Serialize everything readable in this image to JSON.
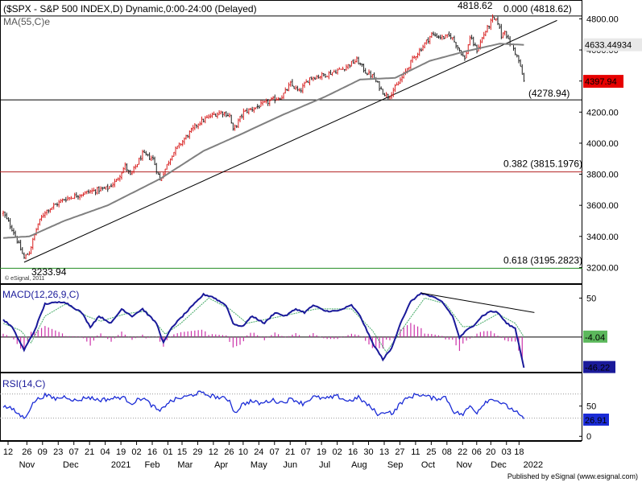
{
  "title": "($SPX - S&P 500 INDEX,D) Dynamic,0:00-24:00 (Delayed)",
  "footer": "Published by eSignal (www.esignal.com)",
  "watermark": "© eSignal, 2011",
  "colors": {
    "up": "#d81e1e",
    "down": "#1e1e1e",
    "ma": "#808080",
    "macd": "#1a1a9a",
    "signal": "#44aa66",
    "hist": "#cc33aa",
    "rsi": "#1a2bd6",
    "fib382": "#b22222",
    "fib618": "#228b22",
    "lastbox": "#e60000"
  },
  "chart_data": [
    {
      "type": "candlestick",
      "name": "price",
      "ylim": [
        3140,
        4880
      ],
      "yticks": [
        3200,
        3400,
        3600,
        3800,
        4000,
        4200,
        4400,
        4600,
        4800
      ],
      "ytick_labels": [
        "3200.00",
        "3400.00",
        "3600.00",
        "3800.00",
        "4000.00",
        "4200.00",
        "4400.00",
        "4600.00",
        "4800.00"
      ],
      "x_range_bars": [
        0,
        300
      ],
      "key_points": [
        {
          "bar": 0,
          "close": 3550
        },
        {
          "bar": 6,
          "close": 3430
        },
        {
          "bar": 12,
          "close": 3260
        },
        {
          "bar": 15,
          "close": 3300
        },
        {
          "bar": 20,
          "close": 3480
        },
        {
          "bar": 24,
          "close": 3560
        },
        {
          "bar": 35,
          "close": 3640
        },
        {
          "bar": 50,
          "close": 3690
        },
        {
          "bar": 60,
          "close": 3710
        },
        {
          "bar": 65,
          "close": 3760
        },
        {
          "bar": 70,
          "close": 3855
        },
        {
          "bar": 73,
          "close": 3790
        },
        {
          "bar": 80,
          "close": 3930
        },
        {
          "bar": 86,
          "close": 3900
        },
        {
          "bar": 90,
          "close": 3760
        },
        {
          "bar": 92,
          "close": 3810
        },
        {
          "bar": 97,
          "close": 3930
        },
        {
          "bar": 105,
          "close": 4040
        },
        {
          "bar": 112,
          "close": 4130
        },
        {
          "bar": 120,
          "close": 4180
        },
        {
          "bar": 125,
          "close": 4200
        },
        {
          "bar": 130,
          "close": 4180
        },
        {
          "bar": 132,
          "close": 4080
        },
        {
          "bar": 138,
          "close": 4200
        },
        {
          "bar": 145,
          "close": 4230
        },
        {
          "bar": 155,
          "close": 4280
        },
        {
          "bar": 160,
          "close": 4300
        },
        {
          "bar": 165,
          "close": 4380
        },
        {
          "bar": 170,
          "close": 4330
        },
        {
          "bar": 176,
          "close": 4420
        },
        {
          "bar": 185,
          "close": 4440
        },
        {
          "bar": 195,
          "close": 4480
        },
        {
          "bar": 203,
          "close": 4535
        },
        {
          "bar": 208,
          "close": 4460
        },
        {
          "bar": 212,
          "close": 4430
        },
        {
          "bar": 218,
          "close": 4330
        },
        {
          "bar": 221,
          "close": 4300
        },
        {
          "bar": 226,
          "close": 4370
        },
        {
          "bar": 230,
          "close": 4440
        },
        {
          "bar": 235,
          "close": 4540
        },
        {
          "bar": 240,
          "close": 4610
        },
        {
          "bar": 246,
          "close": 4700
        },
        {
          "bar": 252,
          "close": 4680
        },
        {
          "bar": 257,
          "close": 4690
        },
        {
          "bar": 262,
          "close": 4600
        },
        {
          "bar": 265,
          "close": 4540
        },
        {
          "bar": 268,
          "close": 4680
        },
        {
          "bar": 272,
          "close": 4600
        },
        {
          "bar": 276,
          "close": 4700
        },
        {
          "bar": 281,
          "close": 4800
        },
        {
          "bar": 284,
          "close": 4780
        },
        {
          "bar": 286,
          "close": 4690
        },
        {
          "bar": 288,
          "close": 4730
        },
        {
          "bar": 290,
          "close": 4660
        },
        {
          "bar": 293,
          "close": 4610
        },
        {
          "bar": 296,
          "close": 4530
        },
        {
          "bar": 299,
          "close": 4398
        }
      ],
      "ma": {
        "label": "MA(55,C)",
        "suffix": "e",
        "last_value_label": "4633.44934",
        "key_points": [
          {
            "bar": 0,
            "value": 3390
          },
          {
            "bar": 15,
            "value": 3400
          },
          {
            "bar": 35,
            "value": 3500
          },
          {
            "bar": 60,
            "value": 3600
          },
          {
            "bar": 90,
            "value": 3770
          },
          {
            "bar": 115,
            "value": 3950
          },
          {
            "bar": 135,
            "value": 4050
          },
          {
            "bar": 160,
            "value": 4180
          },
          {
            "bar": 185,
            "value": 4300
          },
          {
            "bar": 205,
            "value": 4410
          },
          {
            "bar": 225,
            "value": 4420
          },
          {
            "bar": 245,
            "value": 4530
          },
          {
            "bar": 265,
            "value": 4590
          },
          {
            "bar": 285,
            "value": 4640
          },
          {
            "bar": 299,
            "value": 4633
          }
        ]
      },
      "trendline": {
        "from": {
          "bar": 12,
          "value": 3233.94
        },
        "to": {
          "bar": 318,
          "value": 4790
        }
      },
      "hlines": [
        {
          "value": 4818.62,
          "label": "0.000 (4818.62)",
          "color": "#000000"
        },
        {
          "value": 4278.94,
          "label": "(4278.94)",
          "color": "#000000"
        },
        {
          "value": 3815.1976,
          "label": "0.382 (3815.1976)",
          "color": "#b22222"
        },
        {
          "value": 3195.2823,
          "label": "0.618 (3195.2823)",
          "color": "#228b22"
        }
      ],
      "annotations": [
        {
          "text": "4818.62",
          "bar": 281,
          "value": 4818.62
        },
        {
          "text": "3233.94",
          "bar": 12,
          "value": 3233.94
        }
      ],
      "last_price_label": "4397.94",
      "last_price_value": 4397.94
    },
    {
      "type": "line",
      "name": "macd",
      "label": "MACD(12,26,9,C)",
      "ylim": [
        -50,
        65
      ],
      "yticks": [
        50
      ],
      "ytick_labels": [
        "50"
      ],
      "zero_line": -4.04,
      "value_labels": [
        {
          "text": "-4.04",
          "value": -4.04
        },
        {
          "text": "-46.22",
          "value": -46.22
        }
      ],
      "macd_key_points": [
        {
          "bar": 0,
          "value": 20
        },
        {
          "bar": 5,
          "value": 10
        },
        {
          "bar": 12,
          "value": -22
        },
        {
          "bar": 18,
          "value": 5
        },
        {
          "bar": 24,
          "value": 42
        },
        {
          "bar": 35,
          "value": 45
        },
        {
          "bar": 45,
          "value": 30
        },
        {
          "bar": 50,
          "value": 10
        },
        {
          "bar": 55,
          "value": 25
        },
        {
          "bar": 62,
          "value": 15
        },
        {
          "bar": 68,
          "value": 35
        },
        {
          "bar": 74,
          "value": 25
        },
        {
          "bar": 80,
          "value": 35
        },
        {
          "bar": 88,
          "value": 15
        },
        {
          "bar": 92,
          "value": -12
        },
        {
          "bar": 97,
          "value": 10
        },
        {
          "bar": 105,
          "value": 30
        },
        {
          "bar": 115,
          "value": 55
        },
        {
          "bar": 120,
          "value": 52
        },
        {
          "bar": 128,
          "value": 40
        },
        {
          "bar": 132,
          "value": 15
        },
        {
          "bar": 137,
          "value": 10
        },
        {
          "bar": 143,
          "value": 25
        },
        {
          "bar": 150,
          "value": 15
        },
        {
          "bar": 156,
          "value": 30
        },
        {
          "bar": 162,
          "value": 25
        },
        {
          "bar": 168,
          "value": 35
        },
        {
          "bar": 173,
          "value": 30
        },
        {
          "bar": 178,
          "value": 40
        },
        {
          "bar": 185,
          "value": 32
        },
        {
          "bar": 192,
          "value": 32
        },
        {
          "bar": 200,
          "value": 40
        },
        {
          "bar": 205,
          "value": 25
        },
        {
          "bar": 212,
          "value": -12
        },
        {
          "bar": 218,
          "value": -35
        },
        {
          "bar": 223,
          "value": -20
        },
        {
          "bar": 228,
          "value": 15
        },
        {
          "bar": 234,
          "value": 45
        },
        {
          "bar": 240,
          "value": 57
        },
        {
          "bar": 246,
          "value": 52
        },
        {
          "bar": 252,
          "value": 45
        },
        {
          "bar": 258,
          "value": 25
        },
        {
          "bar": 262,
          "value": -5
        },
        {
          "bar": 266,
          "value": 5
        },
        {
          "bar": 270,
          "value": 12
        },
        {
          "bar": 275,
          "value": 25
        },
        {
          "bar": 280,
          "value": 32
        },
        {
          "bar": 284,
          "value": 30
        },
        {
          "bar": 289,
          "value": 15
        },
        {
          "bar": 294,
          "value": 8
        },
        {
          "bar": 299,
          "value": -46
        }
      ],
      "signal_key_points": [
        {
          "bar": 0,
          "value": 15
        },
        {
          "bar": 10,
          "value": 5
        },
        {
          "bar": 16,
          "value": -12
        },
        {
          "bar": 24,
          "value": 25
        },
        {
          "bar": 36,
          "value": 42
        },
        {
          "bar": 48,
          "value": 25
        },
        {
          "bar": 56,
          "value": 18
        },
        {
          "bar": 70,
          "value": 28
        },
        {
          "bar": 82,
          "value": 32
        },
        {
          "bar": 93,
          "value": 0
        },
        {
          "bar": 102,
          "value": 15
        },
        {
          "bar": 118,
          "value": 50
        },
        {
          "bar": 130,
          "value": 35
        },
        {
          "bar": 140,
          "value": 15
        },
        {
          "bar": 160,
          "value": 25
        },
        {
          "bar": 180,
          "value": 35
        },
        {
          "bar": 200,
          "value": 35
        },
        {
          "bar": 212,
          "value": 5
        },
        {
          "bar": 220,
          "value": -25
        },
        {
          "bar": 230,
          "value": 10
        },
        {
          "bar": 242,
          "value": 50
        },
        {
          "bar": 254,
          "value": 42
        },
        {
          "bar": 264,
          "value": 10
        },
        {
          "bar": 272,
          "value": 12
        },
        {
          "bar": 284,
          "value": 28
        },
        {
          "bar": 294,
          "value": 15
        },
        {
          "bar": 299,
          "value": -4
        }
      ],
      "divergence_line": {
        "from": {
          "bar": 240,
          "value": 57
        },
        "to": {
          "bar": 305,
          "value": 30
        }
      }
    },
    {
      "type": "line",
      "name": "rsi",
      "label": "RSI(14,C)",
      "ylim": [
        -5,
        100
      ],
      "yticks": [
        0,
        50
      ],
      "ytick_labels": [
        "0",
        "50"
      ],
      "guide_lines": [
        70,
        30
      ],
      "last_value_label": "26.91",
      "key_points": [
        {
          "bar": 0,
          "value": 50
        },
        {
          "bar": 5,
          "value": 45
        },
        {
          "bar": 12,
          "value": 30
        },
        {
          "bar": 18,
          "value": 58
        },
        {
          "bar": 24,
          "value": 68
        },
        {
          "bar": 30,
          "value": 62
        },
        {
          "bar": 36,
          "value": 66
        },
        {
          "bar": 42,
          "value": 58
        },
        {
          "bar": 48,
          "value": 65
        },
        {
          "bar": 55,
          "value": 60
        },
        {
          "bar": 62,
          "value": 62
        },
        {
          "bar": 68,
          "value": 65
        },
        {
          "bar": 74,
          "value": 55
        },
        {
          "bar": 80,
          "value": 64
        },
        {
          "bar": 85,
          "value": 52
        },
        {
          "bar": 90,
          "value": 40
        },
        {
          "bar": 94,
          "value": 55
        },
        {
          "bar": 100,
          "value": 62
        },
        {
          "bar": 106,
          "value": 66
        },
        {
          "bar": 112,
          "value": 72
        },
        {
          "bar": 118,
          "value": 68
        },
        {
          "bar": 124,
          "value": 64
        },
        {
          "bar": 130,
          "value": 60
        },
        {
          "bar": 133,
          "value": 38
        },
        {
          "bar": 137,
          "value": 52
        },
        {
          "bar": 142,
          "value": 58
        },
        {
          "bar": 148,
          "value": 54
        },
        {
          "bar": 154,
          "value": 60
        },
        {
          "bar": 160,
          "value": 56
        },
        {
          "bar": 166,
          "value": 62
        },
        {
          "bar": 172,
          "value": 54
        },
        {
          "bar": 178,
          "value": 65
        },
        {
          "bar": 185,
          "value": 62
        },
        {
          "bar": 192,
          "value": 66
        },
        {
          "bar": 198,
          "value": 58
        },
        {
          "bar": 204,
          "value": 64
        },
        {
          "bar": 210,
          "value": 50
        },
        {
          "bar": 216,
          "value": 35
        },
        {
          "bar": 220,
          "value": 42
        },
        {
          "bar": 224,
          "value": 38
        },
        {
          "bar": 228,
          "value": 55
        },
        {
          "bar": 233,
          "value": 64
        },
        {
          "bar": 238,
          "value": 70
        },
        {
          "bar": 243,
          "value": 66
        },
        {
          "bar": 248,
          "value": 62
        },
        {
          "bar": 254,
          "value": 65
        },
        {
          "bar": 259,
          "value": 40
        },
        {
          "bar": 264,
          "value": 36
        },
        {
          "bar": 268,
          "value": 50
        },
        {
          "bar": 272,
          "value": 40
        },
        {
          "bar": 277,
          "value": 58
        },
        {
          "bar": 282,
          "value": 62
        },
        {
          "bar": 286,
          "value": 55
        },
        {
          "bar": 290,
          "value": 48
        },
        {
          "bar": 294,
          "value": 42
        },
        {
          "bar": 299,
          "value": 27
        }
      ]
    }
  ],
  "x_axis": {
    "date_labels": [
      {
        "bar": 0,
        "text": "12"
      },
      {
        "bar": 12,
        "text": "26"
      },
      {
        "bar": 22,
        "text": "09"
      },
      {
        "bar": 32,
        "text": "23"
      },
      {
        "bar": 42,
        "text": "07"
      },
      {
        "bar": 52,
        "text": "21"
      },
      {
        "bar": 62,
        "text": "04"
      },
      {
        "bar": 72,
        "text": "19"
      },
      {
        "bar": 82,
        "text": "02"
      },
      {
        "bar": 92,
        "text": "16"
      },
      {
        "bar": 102,
        "text": "01"
      },
      {
        "bar": 111,
        "text": "15"
      },
      {
        "bar": 121,
        "text": "29"
      },
      {
        "bar": 131,
        "text": "12"
      },
      {
        "bar": 141,
        "text": "26"
      },
      {
        "bar": 150,
        "text": "10"
      },
      {
        "bar": 160,
        "text": "24"
      },
      {
        "bar": 170,
        "text": "07"
      },
      {
        "bar": 180,
        "text": "21"
      },
      {
        "bar": 190,
        "text": "07"
      },
      {
        "bar": 200,
        "text": "19"
      },
      {
        "bar": 210,
        "text": "02"
      },
      {
        "bar": 220,
        "text": "16"
      },
      {
        "bar": 230,
        "text": "30"
      },
      {
        "bar": 240,
        "text": "13"
      },
      {
        "bar": 250,
        "text": "27"
      },
      {
        "bar": 260,
        "text": "11"
      },
      {
        "bar": 270,
        "text": "25"
      },
      {
        "bar": 280,
        "text": "08"
      },
      {
        "bar": 290,
        "text": "22"
      },
      {
        "bar": 299,
        "text": "06"
      },
      {
        "bar": 308,
        "text": "20"
      },
      {
        "bar": 318,
        "text": "03"
      },
      {
        "bar": 326,
        "text": "18"
      }
    ],
    "month_labels": [
      {
        "bar": 12,
        "text": "Nov"
      },
      {
        "bar": 40,
        "text": "Dec"
      },
      {
        "bar": 72,
        "text": "2021"
      },
      {
        "bar": 92,
        "text": "Feb"
      },
      {
        "bar": 113,
        "text": "Mar"
      },
      {
        "bar": 136,
        "text": "Apr"
      },
      {
        "bar": 160,
        "text": "May"
      },
      {
        "bar": 180,
        "text": "Jun"
      },
      {
        "bar": 202,
        "text": "Jul"
      },
      {
        "bar": 224,
        "text": "Aug"
      },
      {
        "bar": 247,
        "text": "Sep"
      },
      {
        "bar": 268,
        "text": "Oct"
      },
      {
        "bar": 291,
        "text": "Nov"
      },
      {
        "bar": 313,
        "text": "Dec"
      },
      {
        "bar": 335,
        "text": "2022"
      }
    ]
  }
}
